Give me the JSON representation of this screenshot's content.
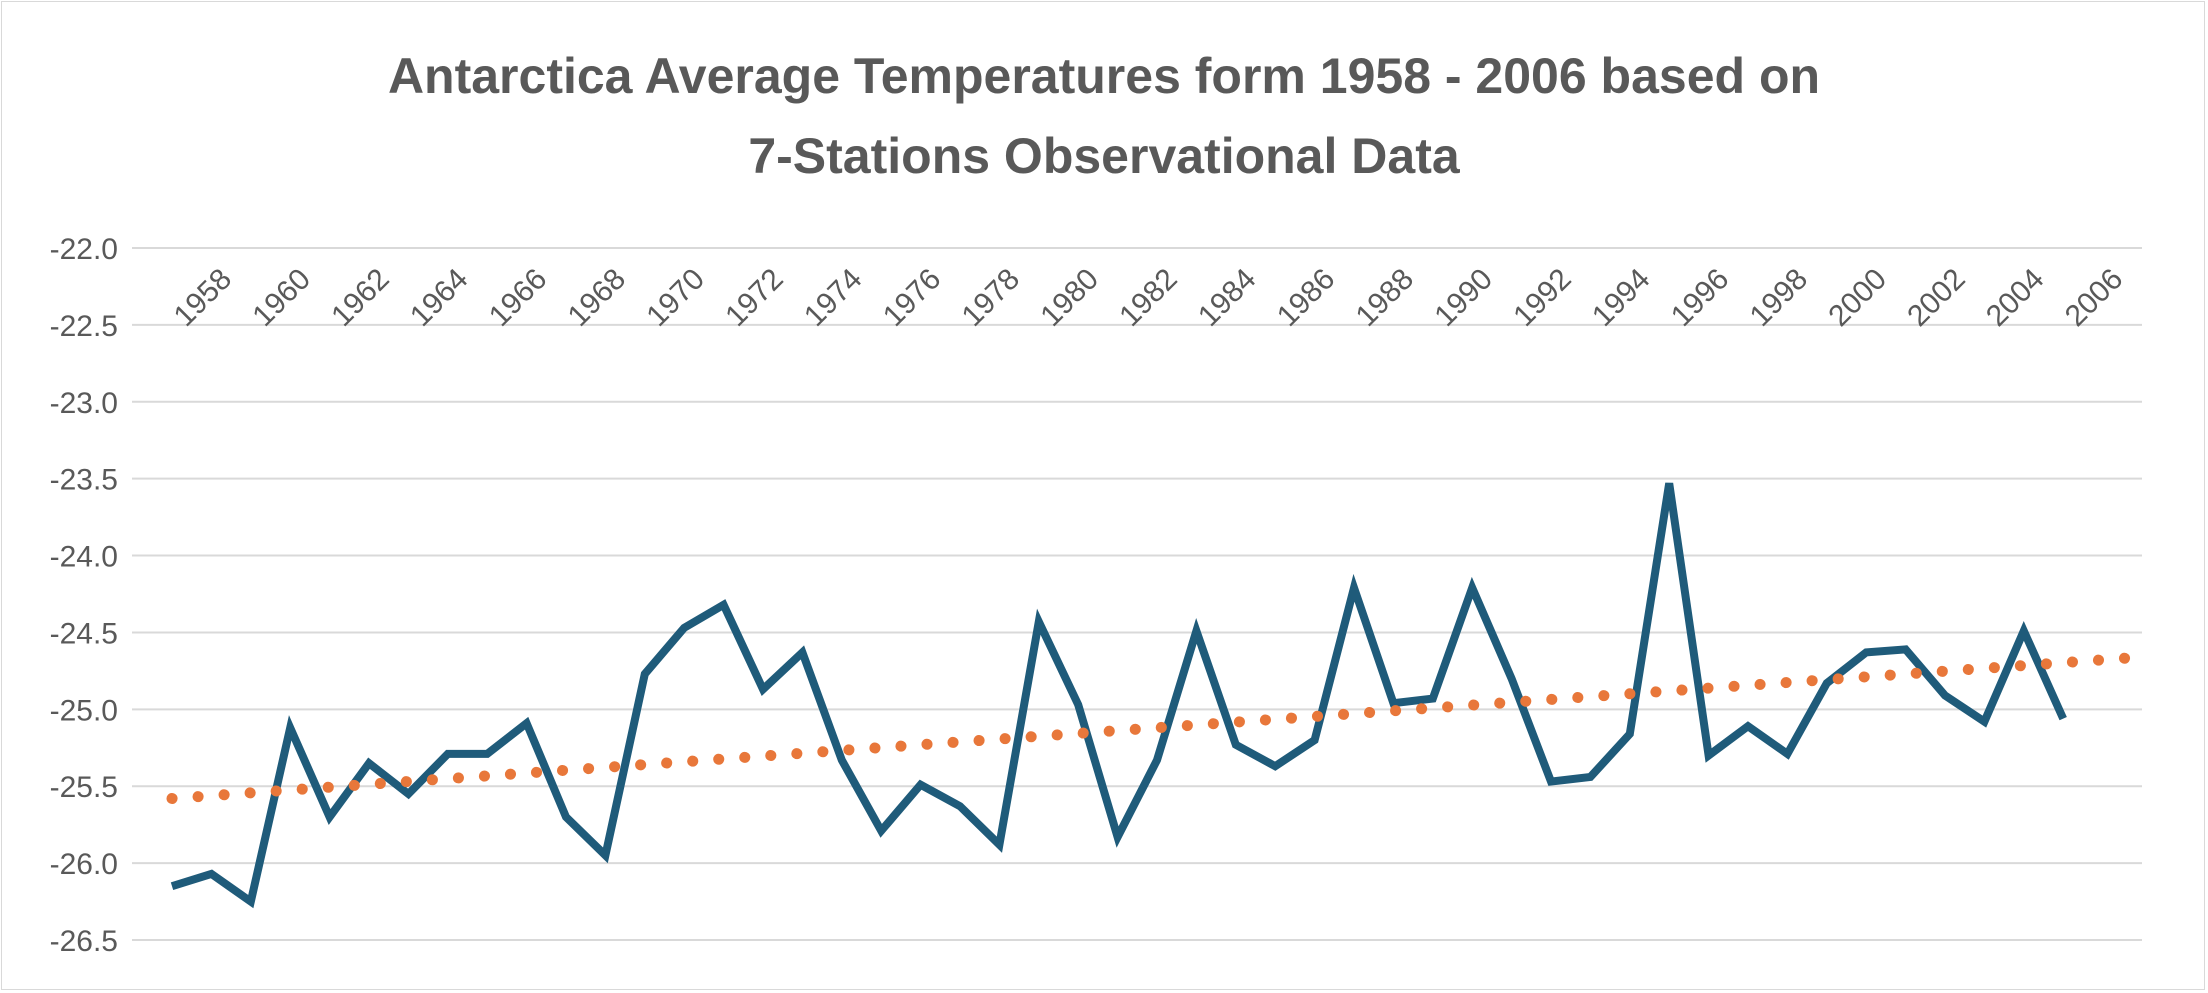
{
  "chart_data": {
    "type": "line",
    "title_line1": "Antarctica Average Temperatures form 1958 - 2006 based on",
    "title_line2": "7-Stations Observational Data",
    "xlabel": "",
    "ylabel": "",
    "ylim": [
      -26.5,
      -22.0
    ],
    "y_ticks": [
      "-22.0",
      "-22.5",
      "-23.0",
      "-23.5",
      "-24.0",
      "-24.5",
      "-25.0",
      "-25.5",
      "-26.0",
      "-26.5"
    ],
    "x_ticks": [
      "1958",
      "1960",
      "1962",
      "1964",
      "1966",
      "1968",
      "1970",
      "1972",
      "1974",
      "1976",
      "1978",
      "1980",
      "1982",
      "1984",
      "1986",
      "1988",
      "1990",
      "1992",
      "1994",
      "1996",
      "1998",
      "2000",
      "2002",
      "2004",
      "2006"
    ],
    "x_range": [
      1958,
      2008
    ],
    "grid": true,
    "legend": "none",
    "series": [
      {
        "style": "solid",
        "color": "#1f5b7a",
        "x": [
          1958,
          1959,
          1960,
          1961,
          1962,
          1963,
          1964,
          1965,
          1966,
          1967,
          1968,
          1969,
          1970,
          1971,
          1972,
          1973,
          1974,
          1975,
          1976,
          1977,
          1978,
          1979,
          1980,
          1981,
          1982,
          1983,
          1984,
          1985,
          1986,
          1987,
          1988,
          1989,
          1990,
          1991,
          1992,
          1993,
          1994,
          1995,
          1996,
          1997,
          1998,
          1999,
          2000,
          2001,
          2002,
          2003,
          2004,
          2005,
          2006
        ],
        "values": [
          -26.15,
          -26.07,
          -26.25,
          -25.12,
          -25.7,
          -25.35,
          -25.55,
          -25.29,
          -25.29,
          -25.09,
          -25.7,
          -25.95,
          -24.77,
          -24.47,
          -24.32,
          -24.87,
          -24.63,
          -25.33,
          -25.79,
          -25.49,
          -25.63,
          -25.88,
          -24.43,
          -24.97,
          -25.83,
          -25.33,
          -24.49,
          -25.23,
          -25.37,
          -25.2,
          -24.21,
          -24.96,
          -24.93,
          -24.21,
          -24.8,
          -25.47,
          -25.44,
          -25.16,
          -23.53,
          -25.3,
          -25.11,
          -25.29,
          -24.83,
          -24.63,
          -24.61,
          -24.91,
          -25.08,
          -24.49,
          -25.06
        ]
      },
      {
        "style": "dotted",
        "color": "#e8773a",
        "kind": "linear-trend",
        "x": [
          1958,
          2008
        ],
        "values": [
          -25.58,
          -24.66
        ]
      }
    ]
  }
}
